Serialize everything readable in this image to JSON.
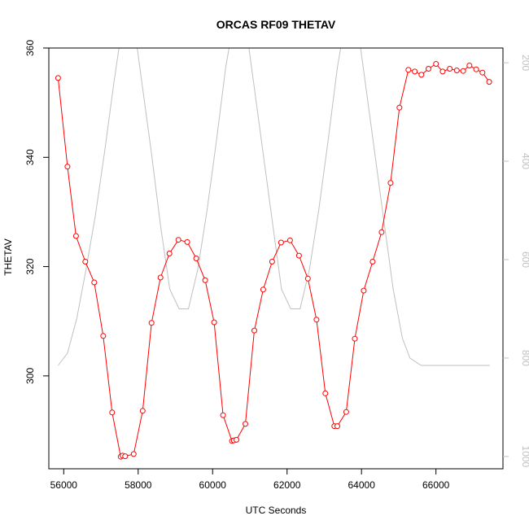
{
  "chart_data": {
    "type": "line",
    "title": "ORCAS RF09 THETAV",
    "xlabel": "UTC Seconds",
    "ylabel": "THETAV",
    "xlim": [
      55600,
      67800
    ],
    "ylim": [
      283,
      360
    ],
    "x_ticks": [
      56000,
      58000,
      60000,
      62000,
      64000,
      66000
    ],
    "x_tick_labels": [
      "56000",
      "58000",
      "60000",
      "62000",
      "64000",
      "66000"
    ],
    "y_ticks": [
      300,
      320,
      340,
      360
    ],
    "y_tick_labels": [
      "300",
      "320",
      "340",
      "360"
    ],
    "y2lim": [
      1025,
      170
    ],
    "y2_ticks": [
      200,
      400,
      600,
      800,
      1000
    ],
    "y2_tick_labels": [
      "200",
      "400",
      "600",
      "800",
      "1000"
    ],
    "grid": false,
    "legend": "none",
    "series": [
      {
        "axis": "left",
        "style": "line+circles",
        "color": "#ff0000",
        "x": [
          55850,
          56100,
          56330,
          56580,
          56820,
          57060,
          57300,
          57530,
          57580,
          57650,
          57880,
          58120,
          58360,
          58600,
          58840,
          59080,
          59320,
          59560,
          59800,
          60040,
          60280,
          60520,
          60570,
          60640,
          60880,
          61120,
          61360,
          61600,
          61840,
          62080,
          62320,
          62560,
          62790,
          63030,
          63270,
          63350,
          63590,
          63820,
          64060,
          64300,
          64540,
          64780,
          65020,
          65260,
          65430,
          65610,
          65800,
          66000,
          66180,
          66370,
          66560,
          66730,
          66900,
          67080,
          67250,
          67430
        ],
        "y": [
          354.5,
          338.3,
          325.6,
          320.9,
          317.1,
          307.3,
          293.3,
          285.2,
          285.4,
          285.3,
          285.7,
          293.6,
          309.7,
          318.0,
          322.4,
          324.9,
          324.5,
          321.5,
          317.5,
          309.8,
          292.8,
          288.1,
          288.2,
          288.3,
          291.2,
          308.3,
          315.8,
          320.9,
          324.4,
          324.8,
          322.0,
          317.8,
          310.3,
          296.8,
          290.8,
          290.8,
          293.4,
          306.8,
          315.6,
          320.9,
          326.3,
          335.3,
          349.1,
          356.0,
          355.7,
          355.1,
          356.2,
          357.1,
          355.7,
          356.2,
          355.9,
          355.8,
          356.8,
          356.1,
          355.5,
          353.8
        ]
      },
      {
        "axis": "right",
        "style": "line",
        "color": "#c0c0c0",
        "x": [
          55850,
          56100,
          56350,
          56600,
          56850,
          57100,
          57350,
          57600,
          57850,
          58100,
          58350,
          58600,
          58850,
          59100,
          59350,
          59600,
          59850,
          60100,
          60350,
          60600,
          60850,
          61100,
          61350,
          61600,
          61850,
          62100,
          62350,
          62600,
          62850,
          63100,
          63350,
          63600,
          63850,
          64100,
          64350,
          64600,
          64850,
          65100,
          65300,
          65600,
          66000,
          66500,
          67000,
          67450
        ],
        "y": [
          815,
          790,
          720,
          620,
          510,
          380,
          240,
          110,
          100,
          240,
          380,
          530,
          660,
          700,
          700,
          620,
          500,
          360,
          210,
          100,
          100,
          240,
          380,
          520,
          660,
          700,
          700,
          620,
          500,
          360,
          210,
          100,
          100,
          240,
          380,
          520,
          660,
          760,
          800,
          815,
          815,
          815,
          815,
          815
        ]
      }
    ]
  }
}
